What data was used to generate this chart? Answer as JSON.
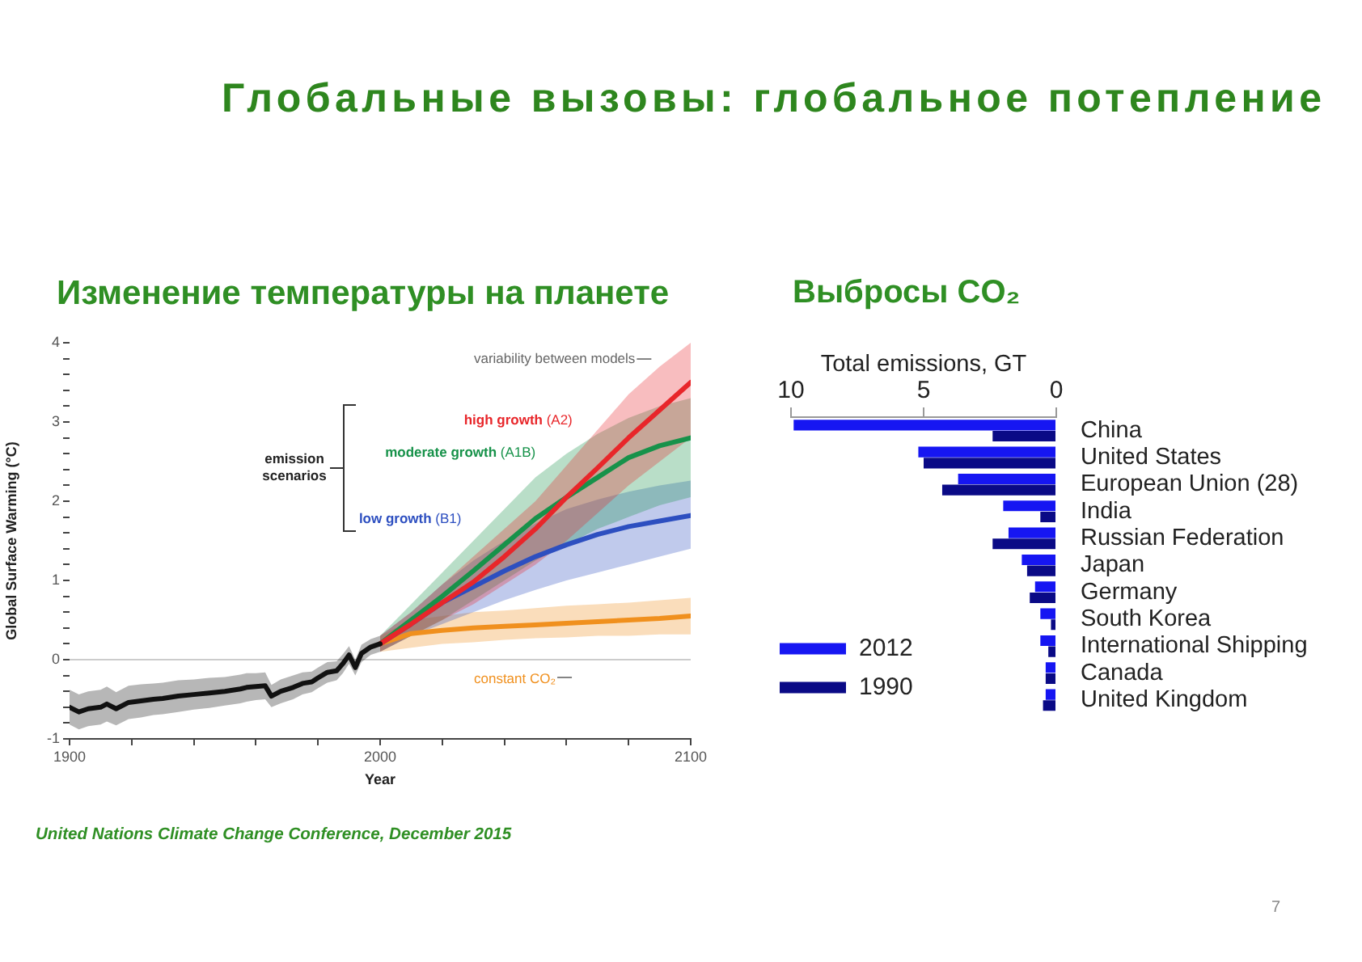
{
  "chart_data": [
    {
      "type": "line",
      "title": "Глобальные вызовы: глобальное потепление",
      "subtitle": "Изменение температуры на планете",
      "xlabel": "Year",
      "ylabel": "Global Surface Warming (°C)",
      "xlim": [
        1900,
        2100
      ],
      "xticks": [
        1900,
        {
          "value": 1920,
          "label": null
        },
        {
          "value": 1940,
          "label": null
        },
        {
          "value": 1960,
          "label": null
        },
        {
          "value": 1980,
          "label": null
        },
        2000,
        {
          "value": 2020,
          "label": null
        },
        {
          "value": 2040,
          "label": null
        },
        {
          "value": 2060,
          "label": null
        },
        {
          "value": 2080,
          "label": null
        },
        2100
      ],
      "ylim": [
        -1,
        4
      ],
      "yticks": [
        -1,
        {
          "value": -0.8,
          "label": null
        },
        {
          "value": -0.6,
          "label": null
        },
        {
          "value": -0.4,
          "label": null
        },
        {
          "value": -0.2,
          "label": null
        },
        0,
        {
          "value": 0.2,
          "label": null
        },
        {
          "value": 0.4,
          "label": null
        },
        {
          "value": 0.6,
          "label": null
        },
        {
          "value": 0.8,
          "label": null
        },
        1,
        {
          "value": 1.2,
          "label": null
        },
        {
          "value": 1.4,
          "label": null
        },
        {
          "value": 1.6,
          "label": null
        },
        {
          "value": 1.8,
          "label": null
        },
        2,
        {
          "value": 2.2,
          "label": null
        },
        {
          "value": 2.4,
          "label": null
        },
        {
          "value": 2.6,
          "label": null
        },
        {
          "value": 2.8,
          "label": null
        },
        3,
        {
          "value": 3.2,
          "label": null
        },
        {
          "value": 3.4,
          "label": null
        },
        {
          "value": 3.6,
          "label": null
        },
        {
          "value": 3.8,
          "label": null
        },
        4
      ],
      "ref_lines": [
        {
          "axis": "y",
          "value": 0,
          "color": "#cccccc"
        }
      ],
      "annotations": [
        "variability between models",
        "emission scenarios",
        "United Nations Climate Change Conference, December 2015"
      ],
      "series": [
        {
          "color": "#111111",
          "x": [
            1900,
            1903,
            1906,
            1910,
            1912,
            1915,
            1919,
            1923,
            1927,
            1930,
            1935,
            1940,
            1945,
            1950,
            1955,
            1957,
            1960,
            1963,
            1965,
            1968,
            1972,
            1975,
            1978,
            1980,
            1983,
            1986,
            1988,
            1990,
            1992,
            1994,
            1997,
            2000
          ],
          "values": [
            -0.6,
            -0.66,
            -0.62,
            -0.6,
            -0.56,
            -0.62,
            -0.54,
            -0.52,
            -0.5,
            -0.49,
            -0.46,
            -0.44,
            -0.42,
            -0.4,
            -0.37,
            -0.35,
            -0.34,
            -0.33,
            -0.46,
            -0.4,
            -0.35,
            -0.3,
            -0.28,
            -0.23,
            -0.16,
            -0.14,
            -0.05,
            0.06,
            -0.1,
            0.08,
            0.16,
            0.2
          ],
          "lower": [
            -0.82,
            -0.88,
            -0.84,
            -0.82,
            -0.78,
            -0.83,
            -0.75,
            -0.73,
            -0.7,
            -0.69,
            -0.66,
            -0.63,
            -0.61,
            -0.58,
            -0.55,
            -0.53,
            -0.51,
            -0.5,
            -0.6,
            -0.55,
            -0.5,
            -0.44,
            -0.41,
            -0.36,
            -0.29,
            -0.26,
            -0.17,
            -0.05,
            -0.2,
            -0.03,
            0.06,
            0.1
          ],
          "upper": [
            -0.38,
            -0.44,
            -0.4,
            -0.38,
            -0.34,
            -0.41,
            -0.33,
            -0.31,
            -0.3,
            -0.29,
            -0.26,
            -0.25,
            -0.23,
            -0.22,
            -0.19,
            -0.17,
            -0.17,
            -0.16,
            -0.32,
            -0.25,
            -0.2,
            -0.16,
            -0.15,
            -0.1,
            -0.03,
            -0.02,
            0.07,
            0.17,
            0.0,
            0.19,
            0.26,
            0.3
          ]
        },
        {
          "name": "high growth (A2)",
          "color": "#e8262a",
          "x": [
            2000,
            2010,
            2020,
            2030,
            2040,
            2050,
            2060,
            2070,
            2080,
            2090,
            2100
          ],
          "values": [
            0.2,
            0.45,
            0.72,
            0.98,
            1.3,
            1.65,
            2.05,
            2.42,
            2.8,
            3.15,
            3.5
          ],
          "lower": [
            0.1,
            0.3,
            0.5,
            0.7,
            0.95,
            1.2,
            1.5,
            1.85,
            2.2,
            2.5,
            2.8
          ],
          "upper": [
            0.3,
            0.6,
            0.95,
            1.3,
            1.65,
            2.0,
            2.45,
            2.9,
            3.35,
            3.7,
            4.0
          ]
        },
        {
          "name": "moderate growth (A1B)",
          "color": "#17924a",
          "x": [
            2000,
            2010,
            2020,
            2030,
            2040,
            2050,
            2060,
            2070,
            2080,
            2090,
            2100
          ],
          "values": [
            0.2,
            0.5,
            0.8,
            1.12,
            1.45,
            1.78,
            2.05,
            2.3,
            2.55,
            2.7,
            2.8
          ],
          "lower": [
            0.1,
            0.3,
            0.5,
            0.75,
            1.0,
            1.25,
            1.45,
            1.65,
            1.8,
            1.95,
            2.05
          ],
          "upper": [
            0.3,
            0.7,
            1.1,
            1.5,
            1.9,
            2.3,
            2.6,
            2.85,
            3.05,
            3.2,
            3.3
          ]
        },
        {
          "name": "low growth (B1)",
          "color": "#2d4fc0",
          "x": [
            2000,
            2010,
            2020,
            2030,
            2040,
            2050,
            2060,
            2070,
            2080,
            2090,
            2100
          ],
          "values": [
            0.2,
            0.45,
            0.72,
            0.92,
            1.12,
            1.3,
            1.45,
            1.58,
            1.68,
            1.75,
            1.82
          ],
          "lower": [
            0.1,
            0.3,
            0.45,
            0.6,
            0.75,
            0.88,
            1.0,
            1.1,
            1.2,
            1.3,
            1.4
          ],
          "upper": [
            0.3,
            0.6,
            0.95,
            1.25,
            1.5,
            1.72,
            1.9,
            2.02,
            2.12,
            2.2,
            2.26
          ]
        },
        {
          "name": "constant CO₂",
          "color": "#f0901e",
          "x": [
            2000,
            2010,
            2020,
            2030,
            2040,
            2050,
            2060,
            2070,
            2080,
            2090,
            2100
          ],
          "values": [
            0.2,
            0.33,
            0.37,
            0.4,
            0.42,
            0.44,
            0.46,
            0.48,
            0.5,
            0.52,
            0.55
          ],
          "lower": [
            0.1,
            0.15,
            0.2,
            0.22,
            0.25,
            0.27,
            0.28,
            0.3,
            0.3,
            0.32,
            0.32
          ],
          "upper": [
            0.3,
            0.5,
            0.55,
            0.6,
            0.62,
            0.65,
            0.68,
            0.7,
            0.72,
            0.75,
            0.78
          ]
        }
      ]
    },
    {
      "type": "bar",
      "orientation": "horizontal",
      "title": "Выбросы CO₂",
      "xlabel": "Total emissions, GT",
      "categories": [
        "China",
        "United States",
        "European Union (28)",
        "India",
        "Russian Federation",
        "Japan",
        "Germany",
        "South Korea",
        "International Shipping",
        "Canada",
        "United Kingdom"
      ],
      "series": [
        {
          "name": "2012",
          "color": "#1616f2",
          "values": [
            9.9,
            5.2,
            3.7,
            2.0,
            1.8,
            1.3,
            0.8,
            0.6,
            0.6,
            0.4,
            0.4
          ]
        },
        {
          "name": "1990",
          "color": "#0a0a86",
          "values": [
            2.4,
            5.0,
            4.3,
            0.6,
            2.4,
            1.1,
            1.0,
            0.2,
            0.3,
            0.4,
            0.5
          ]
        }
      ],
      "xlim": [
        10,
        0
      ],
      "xticks": [
        10,
        5,
        0
      ],
      "legend": "bottom left",
      "annotations": [
        "7"
      ]
    }
  ]
}
